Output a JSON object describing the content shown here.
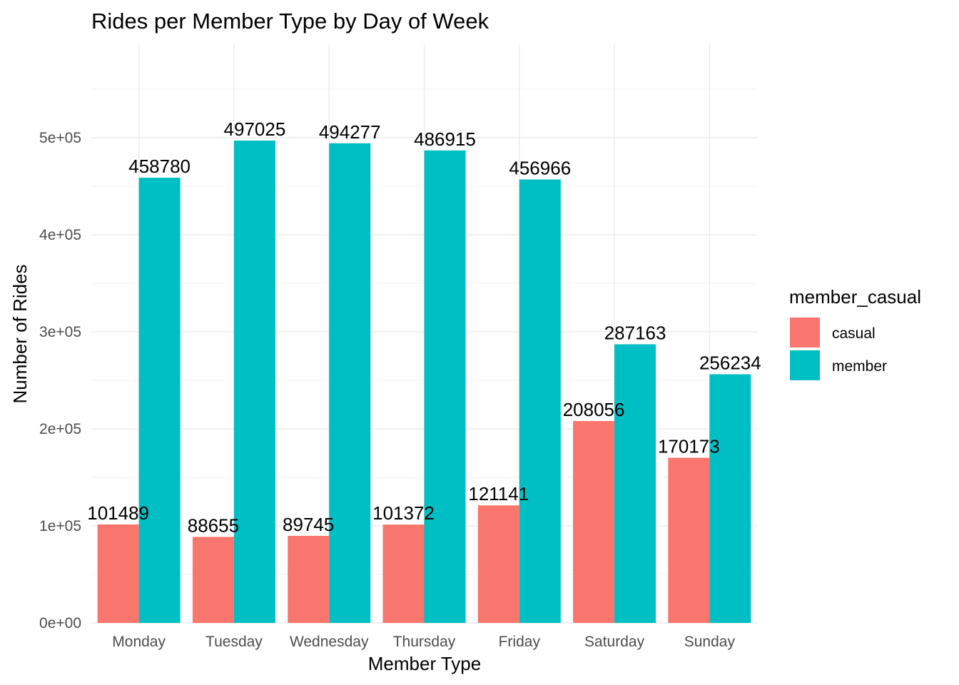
{
  "chart_data": {
    "type": "bar",
    "title": "Rides per Member Type by Day of Week",
    "xlabel": "Member Type",
    "ylabel": "Number of Rides",
    "categories": [
      "Monday",
      "Tuesday",
      "Wednesday",
      "Thursday",
      "Friday",
      "Saturday",
      "Sunday"
    ],
    "series": [
      {
        "name": "casual",
        "color": "#F8766D",
        "values": [
          101489,
          88655,
          89745,
          101372,
          121141,
          208056,
          170173
        ]
      },
      {
        "name": "member",
        "color": "#00BFC4",
        "values": [
          458780,
          497025,
          494277,
          486915,
          456966,
          287163,
          256234
        ]
      }
    ],
    "ylim": [
      0,
      550000
    ],
    "y_ticks": [
      0,
      100000,
      200000,
      300000,
      400000,
      500000
    ],
    "y_tick_labels": [
      "0e+00",
      "1e+05",
      "2e+05",
      "3e+05",
      "4e+05",
      "5e+05"
    ],
    "legend": {
      "title": "member_casual",
      "position": "right"
    },
    "grid": true
  }
}
